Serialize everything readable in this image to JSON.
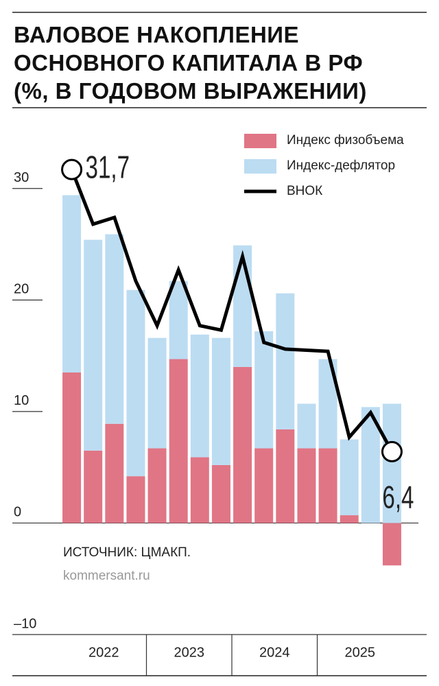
{
  "chart_data": {
    "type": "stacked-bar-line",
    "title": "ВАЛОВОЕ НАКОПЛЕНИЕ\nОСНОВНОГО КАПИТАЛА В РФ\n(%, В ГОДОВОМ ВЫРАЖЕНИИ)",
    "categories": [
      null,
      null,
      null,
      null,
      null,
      null,
      null,
      null,
      null,
      null,
      null,
      null,
      null,
      null,
      null,
      null
    ],
    "x_groups": [
      "2022",
      "2023",
      "2024",
      "2025"
    ],
    "series": [
      {
        "name": "Индекс физобъема",
        "color": "#e07585",
        "kind": "bar",
        "values": [
          13.5,
          6.5,
          8.9,
          4.2,
          6.7,
          14.7,
          5.9,
          5.2,
          14.0,
          6.7,
          8.4,
          6.7,
          6.7,
          0.7,
          0,
          -3.8
        ]
      },
      {
        "name": "Индекс-дефлятор",
        "color": "#bcdcf2",
        "kind": "bar",
        "values": [
          15.9,
          18.9,
          17.0,
          16.7,
          9.9,
          7.0,
          11.0,
          11.4,
          10.9,
          10.5,
          12.2,
          4.0,
          8.0,
          6.8,
          10.4,
          10.7
        ]
      },
      {
        "name": "ВНОК",
        "color": "#000000",
        "kind": "line",
        "values": [
          31.7,
          26.8,
          27.4,
          21.7,
          17.7,
          22.7,
          17.7,
          17.3,
          23.9,
          16.2,
          15.6,
          15.5,
          15.4,
          7.7,
          9.9,
          6.4
        ],
        "value_labels": [
          "31,7",
          null,
          null,
          null,
          null,
          null,
          null,
          null,
          null,
          null,
          null,
          null,
          null,
          null,
          null,
          "6,4"
        ]
      }
    ],
    "ylim": [
      -10,
      37
    ],
    "yticks": [
      {
        "value": -10,
        "label": "–10"
      },
      0,
      10,
      20,
      30
    ],
    "source": "ИСТОЧНИК: ЦМАКП.",
    "site": "kommersant.ru"
  }
}
